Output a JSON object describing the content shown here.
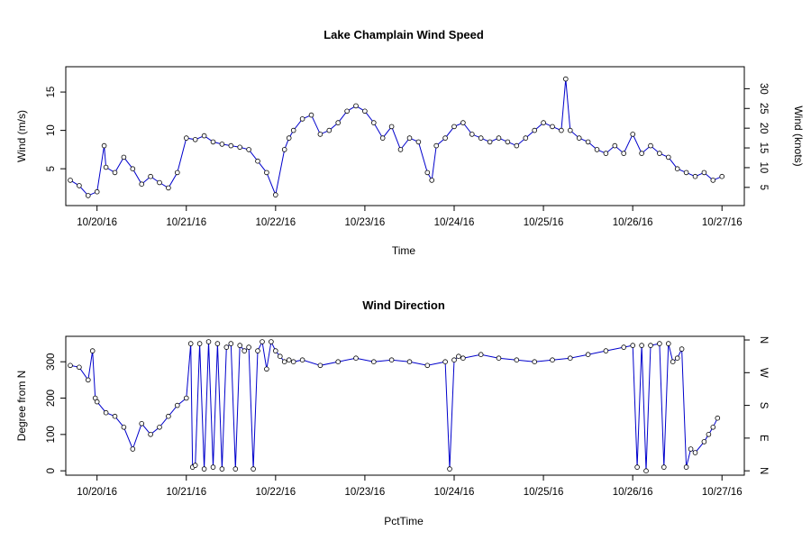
{
  "chart_data": [
    {
      "type": "line",
      "title": "Lake Champlain Wind Speed",
      "xlabel": "Time",
      "ylabel": "Wind (m/s)",
      "y2label": "Wind (knots)",
      "xlim": [
        -0.35,
        7.25
      ],
      "ylim": [
        0.2,
        18.3
      ],
      "x_ticks": [
        0,
        1,
        2,
        3,
        4,
        5,
        6,
        7
      ],
      "x_tick_labels": [
        "10/20/16",
        "10/21/16",
        "10/22/16",
        "10/23/16",
        "10/24/16",
        "10/25/16",
        "10/26/16",
        "10/27/16"
      ],
      "y_ticks": [
        5,
        10,
        15
      ],
      "y2_ticks": [
        5,
        10,
        15,
        20,
        25,
        30
      ],
      "grid": false,
      "series": [
        {
          "x": [
            -0.3,
            -0.2,
            -0.1,
            0.0,
            0.08,
            0.1,
            0.2,
            0.3,
            0.4,
            0.5,
            0.6,
            0.7,
            0.8,
            0.9,
            1.0,
            1.1,
            1.2,
            1.3,
            1.4,
            1.5,
            1.6,
            1.7,
            1.8,
            1.9,
            2.0,
            2.1,
            2.15,
            2.2,
            2.3,
            2.4,
            2.5,
            2.6,
            2.7,
            2.8,
            2.9,
            3.0,
            3.1,
            3.2,
            3.3,
            3.4,
            3.5,
            3.6,
            3.7,
            3.75,
            3.8,
            3.9,
            4.0,
            4.1,
            4.2,
            4.3,
            4.4,
            4.5,
            4.6,
            4.7,
            4.8,
            4.9,
            5.0,
            5.1,
            5.2,
            5.25,
            5.3,
            5.4,
            5.5,
            5.6,
            5.7,
            5.8,
            5.9,
            6.0,
            6.1,
            6.2,
            6.3,
            6.4,
            6.5,
            6.6,
            6.7,
            6.8,
            6.9,
            7.0
          ],
          "y": [
            3.5,
            2.8,
            1.5,
            2.0,
            8.0,
            5.2,
            4.5,
            6.5,
            5.0,
            3.0,
            4.0,
            3.2,
            2.5,
            4.5,
            9.0,
            8.8,
            9.3,
            8.5,
            8.2,
            8.0,
            7.8,
            7.5,
            6.0,
            4.5,
            1.6,
            7.5,
            9.0,
            10.0,
            11.5,
            12.0,
            9.5,
            10.0,
            11.0,
            12.5,
            13.2,
            12.5,
            11.0,
            9.0,
            10.5,
            7.5,
            9.0,
            8.5,
            4.5,
            3.5,
            8.0,
            9.0,
            10.5,
            11.0,
            9.5,
            9.0,
            8.5,
            9.0,
            8.5,
            8.0,
            9.0,
            10.0,
            11.0,
            10.5,
            10.0,
            16.7,
            10.0,
            9.0,
            8.5,
            7.5,
            7.0,
            8.0,
            7.0,
            9.5,
            7.0,
            8.0,
            7.0,
            6.5,
            5.0,
            4.5,
            4.0,
            4.5,
            3.5,
            4.0
          ]
        }
      ]
    },
    {
      "type": "line",
      "title": "Wind Direction",
      "xlabel": "PctTime",
      "ylabel": "Degree from N",
      "xlim": [
        -0.35,
        7.25
      ],
      "ylim": [
        -12,
        370
      ],
      "x_ticks": [
        0,
        1,
        2,
        3,
        4,
        5,
        6,
        7
      ],
      "x_tick_labels": [
        "10/20/16",
        "10/21/16",
        "10/22/16",
        "10/23/16",
        "10/24/16",
        "10/25/16",
        "10/26/16",
        "10/27/16"
      ],
      "y_ticks": [
        0,
        100,
        200,
        300
      ],
      "y2_ticks": [
        0,
        90,
        180,
        270,
        360
      ],
      "y2_tick_labels": [
        "N",
        "E",
        "S",
        "W",
        "N"
      ],
      "grid": false,
      "series": [
        {
          "x": [
            -0.3,
            -0.2,
            -0.1,
            -0.05,
            -0.02,
            0.0,
            0.1,
            0.2,
            0.3,
            0.4,
            0.5,
            0.6,
            0.7,
            0.8,
            0.9,
            1.0,
            1.05,
            1.07,
            1.1,
            1.15,
            1.2,
            1.25,
            1.3,
            1.35,
            1.4,
            1.45,
            1.5,
            1.55,
            1.6,
            1.65,
            1.7,
            1.75,
            1.8,
            1.85,
            1.9,
            1.95,
            2.0,
            2.05,
            2.1,
            2.15,
            2.2,
            2.3,
            2.5,
            2.7,
            2.9,
            3.1,
            3.3,
            3.5,
            3.7,
            3.9,
            3.95,
            4.0,
            4.05,
            4.1,
            4.3,
            4.5,
            4.7,
            4.9,
            5.1,
            5.3,
            5.5,
            5.7,
            5.9,
            6.0,
            6.05,
            6.1,
            6.15,
            6.2,
            6.3,
            6.35,
            6.4,
            6.45,
            6.5,
            6.55,
            6.6,
            6.65,
            6.7,
            6.8,
            6.85,
            6.9,
            6.95
          ],
          "y": [
            290,
            285,
            250,
            330,
            200,
            190,
            160,
            150,
            120,
            60,
            130,
            100,
            120,
            150,
            180,
            200,
            350,
            10,
            15,
            350,
            5,
            355,
            10,
            350,
            5,
            340,
            350,
            5,
            345,
            330,
            340,
            5,
            330,
            355,
            280,
            355,
            330,
            315,
            300,
            305,
            300,
            305,
            290,
            300,
            310,
            300,
            305,
            300,
            290,
            300,
            5,
            305,
            315,
            310,
            320,
            310,
            305,
            300,
            305,
            310,
            320,
            330,
            340,
            345,
            10,
            345,
            0,
            345,
            350,
            10,
            350,
            300,
            310,
            335,
            10,
            60,
            50,
            80,
            100,
            120,
            145
          ]
        }
      ]
    }
  ]
}
